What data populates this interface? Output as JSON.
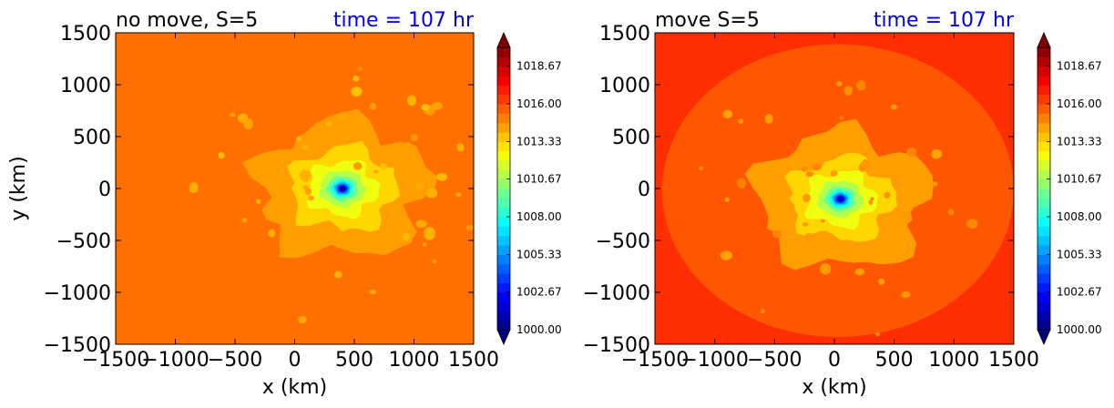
{
  "chart_data": [
    {
      "type": "heatmap",
      "title": "no move, S=5",
      "time_label": "time = 107 hr",
      "time_color": "#0000ee",
      "xlabel": "x (km)",
      "ylabel": "y (km)",
      "xlim": [
        -1500,
        1500
      ],
      "ylim": [
        -1500,
        1500
      ],
      "xticks": [
        -1500,
        -1000,
        -500,
        0,
        500,
        1000,
        1500
      ],
      "yticks": [
        -1500,
        -1000,
        -500,
        0,
        500,
        1000,
        1500
      ],
      "xtick_labels": [
        "−1500",
        "−1000",
        "−500",
        "0",
        "500",
        "1000",
        "1500"
      ],
      "ytick_labels": [
        "−1500",
        "−1000",
        "−500",
        "0",
        "500",
        "1000",
        "1500"
      ],
      "center_km": [
        400,
        0
      ],
      "min_pressure": 1000,
      "background_pressure": 1015.3,
      "colorbar": {
        "min": 1000,
        "max": 1020,
        "tick_values": [
          1000.0,
          1002.67,
          1005.33,
          1008.0,
          1010.67,
          1013.33,
          1016.0,
          1018.67
        ],
        "tick_labels": [
          "1000.00",
          "1002.67",
          "1005.33",
          "1008.00",
          "1010.67",
          "1013.33",
          "1016.00",
          "1018.67"
        ],
        "extend": "both"
      }
    },
    {
      "type": "heatmap",
      "title": "move S=5",
      "time_label": "time = 107 hr",
      "time_color": "#0000ee",
      "xlabel": "x (km)",
      "ylabel": "",
      "xlim": [
        -1500,
        1500
      ],
      "ylim": [
        -1500,
        1500
      ],
      "xticks": [
        -1500,
        -1000,
        -500,
        0,
        500,
        1000,
        1500
      ],
      "yticks": [
        -1500,
        -1000,
        -500,
        0,
        500,
        1000,
        1500
      ],
      "xtick_labels": [
        "−1500",
        "−1000",
        "−500",
        "0",
        "500",
        "1000",
        "1500"
      ],
      "ytick_labels": [
        "−1500",
        "−1000",
        "−500",
        "0",
        "500",
        "1000",
        "1500"
      ],
      "center_km": [
        50,
        -100
      ],
      "min_pressure": 1001,
      "background_pressure": 1015.8,
      "colorbar": {
        "min": 1000,
        "max": 1020,
        "tick_values": [
          1000.0,
          1002.67,
          1005.33,
          1008.0,
          1010.67,
          1013.33,
          1016.0,
          1018.67
        ],
        "tick_labels": [
          "1000.00",
          "1002.67",
          "1005.33",
          "1008.00",
          "1010.67",
          "1013.33",
          "1016.00",
          "1018.67"
        ],
        "extend": "both"
      }
    }
  ]
}
